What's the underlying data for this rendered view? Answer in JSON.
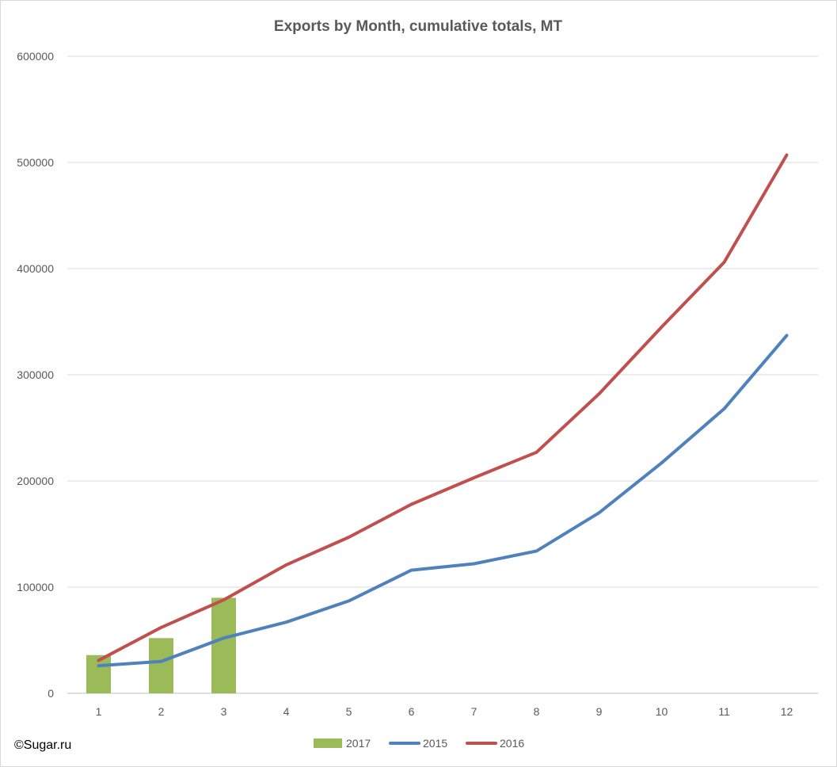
{
  "chart_data": {
    "type": "bar",
    "title": "Exports by Month, cumulative totals, MT",
    "xlabel": "",
    "ylabel": "",
    "ylim": [
      0,
      600000
    ],
    "yticks": [
      "0",
      "100000",
      "200000",
      "300000",
      "400000",
      "500000",
      "600000"
    ],
    "categories": [
      "1",
      "2",
      "3",
      "4",
      "5",
      "6",
      "7",
      "8",
      "9",
      "10",
      "11",
      "12"
    ],
    "grid": true,
    "legend_position": "bottom",
    "series": [
      {
        "name": "2017",
        "kind": "bar",
        "color": "#9bbb59",
        "values": [
          36000,
          52000,
          90000,
          null,
          null,
          null,
          null,
          null,
          null,
          null,
          null,
          null
        ]
      },
      {
        "name": "2015",
        "kind": "line",
        "color": "#4f81bd",
        "values": [
          26000,
          30000,
          52000,
          67000,
          87000,
          116000,
          122000,
          134000,
          170000,
          217000,
          268000,
          337000
        ]
      },
      {
        "name": "2016",
        "kind": "line",
        "color": "#c0504d",
        "values": [
          31000,
          62000,
          88000,
          121000,
          147000,
          178000,
          203000,
          227000,
          282000,
          345000,
          406000,
          507000
        ]
      }
    ]
  },
  "source": "©Sugar.ru"
}
